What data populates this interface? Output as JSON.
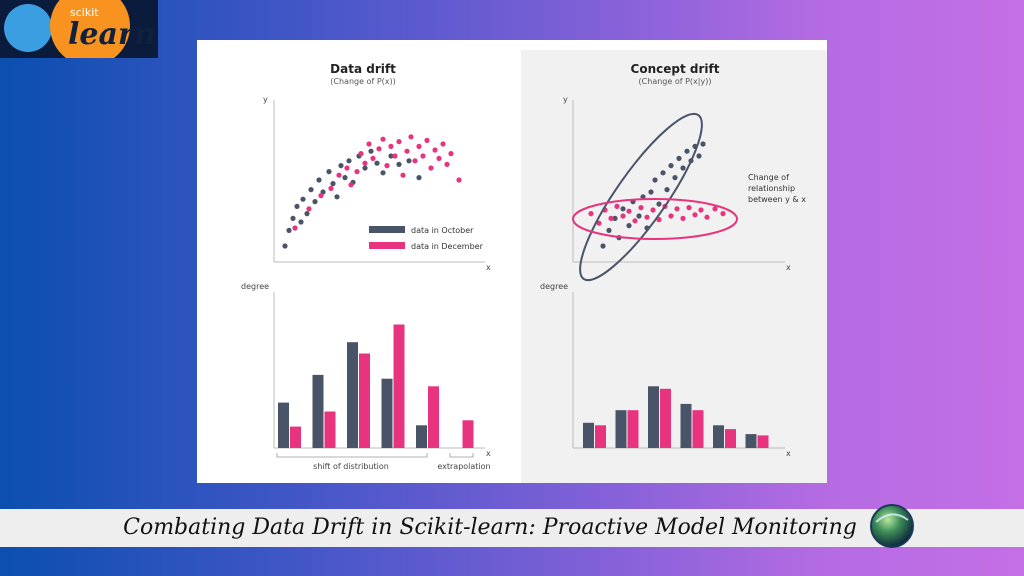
{
  "logo": {
    "top_text": "scikit",
    "main_text": "learn"
  },
  "colors": {
    "october": "#4a5468",
    "december": "#e8337e",
    "axis": "#bbbbbb"
  },
  "left": {
    "title": "Data drift",
    "subtitle": "(Change of P(x))",
    "scatter": {
      "y_label": "y",
      "x_label": "x",
      "legend": [
        {
          "label": "data in October",
          "color": "#4a5468"
        },
        {
          "label": "data in December",
          "color": "#e8337e"
        }
      ],
      "october": [
        [
          0.03,
          0.05
        ],
        [
          0.05,
          0.18
        ],
        [
          0.07,
          0.28
        ],
        [
          0.09,
          0.38
        ],
        [
          0.11,
          0.25
        ],
        [
          0.12,
          0.44
        ],
        [
          0.14,
          0.32
        ],
        [
          0.16,
          0.52
        ],
        [
          0.18,
          0.42
        ],
        [
          0.2,
          0.6
        ],
        [
          0.22,
          0.5
        ],
        [
          0.25,
          0.67
        ],
        [
          0.27,
          0.57
        ],
        [
          0.29,
          0.46
        ],
        [
          0.31,
          0.72
        ],
        [
          0.33,
          0.62
        ],
        [
          0.35,
          0.76
        ],
        [
          0.37,
          0.58
        ],
        [
          0.4,
          0.8
        ],
        [
          0.43,
          0.7
        ],
        [
          0.46,
          0.84
        ],
        [
          0.49,
          0.74
        ],
        [
          0.52,
          0.66
        ],
        [
          0.56,
          0.8
        ],
        [
          0.6,
          0.73
        ],
        [
          0.65,
          0.76
        ],
        [
          0.7,
          0.62
        ]
      ],
      "december": [
        [
          0.08,
          0.2
        ],
        [
          0.15,
          0.36
        ],
        [
          0.21,
          0.47
        ],
        [
          0.26,
          0.53
        ],
        [
          0.3,
          0.64
        ],
        [
          0.34,
          0.7
        ],
        [
          0.36,
          0.56
        ],
        [
          0.39,
          0.67
        ],
        [
          0.41,
          0.82
        ],
        [
          0.43,
          0.74
        ],
        [
          0.45,
          0.9
        ],
        [
          0.47,
          0.78
        ],
        [
          0.5,
          0.86
        ],
        [
          0.52,
          0.94
        ],
        [
          0.54,
          0.72
        ],
        [
          0.56,
          0.88
        ],
        [
          0.58,
          0.8
        ],
        [
          0.6,
          0.92
        ],
        [
          0.62,
          0.64
        ],
        [
          0.64,
          0.84
        ],
        [
          0.66,
          0.96
        ],
        [
          0.68,
          0.76
        ],
        [
          0.7,
          0.88
        ],
        [
          0.72,
          0.8
        ],
        [
          0.74,
          0.93
        ],
        [
          0.76,
          0.7
        ],
        [
          0.78,
          0.85
        ],
        [
          0.8,
          0.78
        ],
        [
          0.82,
          0.9
        ],
        [
          0.84,
          0.73
        ],
        [
          0.86,
          0.82
        ],
        [
          0.9,
          0.6
        ]
      ]
    },
    "bars": {
      "y_label": "degree",
      "x_label": "x",
      "groups": [
        {
          "october": 0.36,
          "december": 0.17
        },
        {
          "october": 0.58,
          "december": 0.29
        },
        {
          "october": 0.84,
          "december": 0.75
        },
        {
          "october": 0.55,
          "december": 0.98
        },
        {
          "october": 0.18,
          "december": 0.49
        },
        {
          "october": 0,
          "december": 0.22
        }
      ],
      "bracket_shift": "shift of distribution",
      "bracket_extrapolation": "extrapolation"
    }
  },
  "right": {
    "title": "Concept drift",
    "subtitle": "(Change of P(x|y))",
    "scatter": {
      "y_label": "y",
      "x_label": "x",
      "annotation": [
        "Change of",
        "relationship",
        "between y & x"
      ],
      "october": [
        [
          0.12,
          0.05
        ],
        [
          0.15,
          0.18
        ],
        [
          0.18,
          0.28
        ],
        [
          0.2,
          0.12
        ],
        [
          0.22,
          0.36
        ],
        [
          0.25,
          0.22
        ],
        [
          0.27,
          0.42
        ],
        [
          0.3,
          0.3
        ],
        [
          0.32,
          0.46
        ],
        [
          0.34,
          0.2
        ],
        [
          0.36,
          0.5
        ],
        [
          0.38,
          0.6
        ],
        [
          0.4,
          0.4
        ],
        [
          0.42,
          0.66
        ],
        [
          0.44,
          0.52
        ],
        [
          0.46,
          0.72
        ],
        [
          0.48,
          0.62
        ],
        [
          0.5,
          0.78
        ],
        [
          0.52,
          0.7
        ],
        [
          0.54,
          0.84
        ],
        [
          0.56,
          0.76
        ],
        [
          0.58,
          0.88
        ],
        [
          0.6,
          0.8
        ],
        [
          0.62,
          0.9
        ]
      ],
      "december": [
        [
          0.06,
          0.32
        ],
        [
          0.1,
          0.24
        ],
        [
          0.13,
          0.35
        ],
        [
          0.16,
          0.28
        ],
        [
          0.19,
          0.38
        ],
        [
          0.22,
          0.3
        ],
        [
          0.25,
          0.34
        ],
        [
          0.28,
          0.26
        ],
        [
          0.31,
          0.37
        ],
        [
          0.34,
          0.29
        ],
        [
          0.37,
          0.35
        ],
        [
          0.4,
          0.27
        ],
        [
          0.43,
          0.38
        ],
        [
          0.46,
          0.3
        ],
        [
          0.49,
          0.36
        ],
        [
          0.52,
          0.28
        ],
        [
          0.55,
          0.37
        ],
        [
          0.58,
          0.31
        ],
        [
          0.61,
          0.35
        ],
        [
          0.64,
          0.29
        ],
        [
          0.68,
          0.36
        ],
        [
          0.72,
          0.32
        ]
      ]
    },
    "bars": {
      "y_label": "degree",
      "x_label": "x",
      "groups": [
        {
          "october": 0.2,
          "december": 0.18
        },
        {
          "october": 0.3,
          "december": 0.3
        },
        {
          "october": 0.49,
          "december": 0.47
        },
        {
          "october": 0.35,
          "december": 0.3
        },
        {
          "october": 0.18,
          "december": 0.15
        },
        {
          "october": 0.11,
          "december": 0.1
        }
      ]
    }
  },
  "caption": "Combating Data Drift in Scikit-learn: Proactive Model Monitoring",
  "globe_icon": "globe-icon"
}
